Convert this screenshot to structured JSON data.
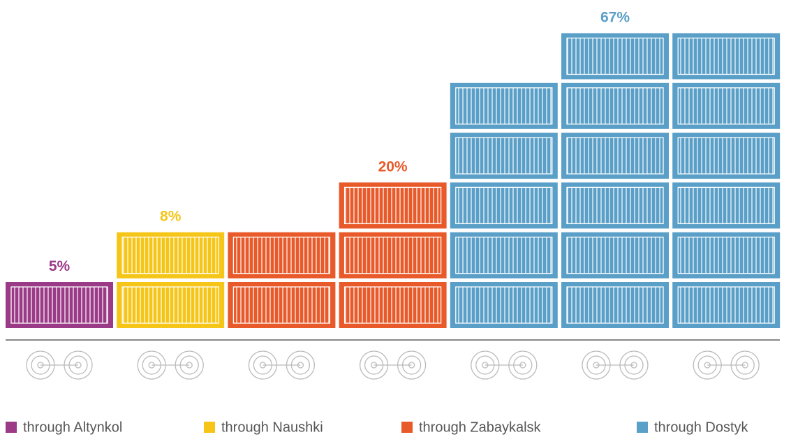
{
  "chart_data": {
    "type": "pictogram",
    "series": [
      {
        "name": "through Altynkol",
        "color": "#9b3a87",
        "values": [
          5
        ],
        "value_labels": [
          "5%"
        ]
      },
      {
        "name": "through Naushki",
        "color": "#f5c518",
        "values": [
          8
        ],
        "value_labels": [
          "8%"
        ]
      },
      {
        "name": "through Zabaykalsk",
        "color": "#e95a2b",
        "values": [
          20
        ],
        "value_labels": [
          "20%"
        ]
      },
      {
        "name": "through Dostyk",
        "color": "#5a9fc7",
        "values": [
          67
        ],
        "value_labels": [
          "67%"
        ]
      }
    ]
  }
}
